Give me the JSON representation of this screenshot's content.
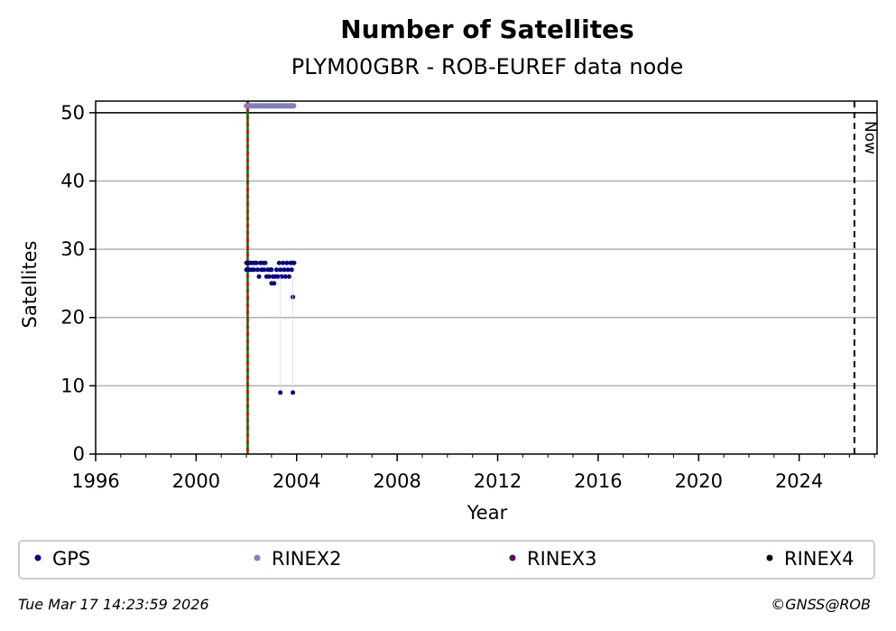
{
  "chart_data": {
    "type": "scatter",
    "title": "Number of Satellites",
    "subtitle": "PLYM00GBR - ROB-EUREF data node",
    "xlabel": "Year",
    "ylabel": "Satellites",
    "xlim": [
      1996,
      2027.1
    ],
    "ylim": [
      0,
      51.7
    ],
    "xticks": [
      1996,
      2000,
      2004,
      2008,
      2012,
      2016,
      2020,
      2024
    ],
    "yticks": [
      0,
      10,
      20,
      30,
      40,
      50
    ],
    "grid": "y",
    "reference_line_y": 50,
    "now_x": 2026.2,
    "now_label": "Now",
    "start_line_x": 2002.05,
    "legend_placement": "bottom",
    "series": [
      {
        "name": "GPS",
        "color": "#00008b",
        "points": [
          [
            2002.0,
            28
          ],
          [
            2002.0,
            27
          ],
          [
            2002.05,
            28
          ],
          [
            2002.1,
            27
          ],
          [
            2002.1,
            28
          ],
          [
            2002.15,
            28
          ],
          [
            2002.2,
            27
          ],
          [
            2002.25,
            28
          ],
          [
            2002.3,
            27
          ],
          [
            2002.35,
            28
          ],
          [
            2002.4,
            28
          ],
          [
            2002.45,
            27
          ],
          [
            2002.5,
            26
          ],
          [
            2002.55,
            28
          ],
          [
            2002.6,
            27
          ],
          [
            2002.65,
            28
          ],
          [
            2002.7,
            27
          ],
          [
            2002.75,
            28
          ],
          [
            2002.8,
            26
          ],
          [
            2002.85,
            27
          ],
          [
            2002.9,
            26
          ],
          [
            2002.95,
            27
          ],
          [
            2003.0,
            27
          ],
          [
            2003.0,
            25
          ],
          [
            2003.05,
            26
          ],
          [
            2003.1,
            25
          ],
          [
            2003.15,
            26
          ],
          [
            2003.2,
            27
          ],
          [
            2003.25,
            26
          ],
          [
            2003.3,
            28
          ],
          [
            2003.35,
            27
          ],
          [
            2003.4,
            26
          ],
          [
            2003.45,
            28
          ],
          [
            2003.5,
            27
          ],
          [
            2003.55,
            26
          ],
          [
            2003.6,
            28
          ],
          [
            2003.65,
            27
          ],
          [
            2003.7,
            26
          ],
          [
            2003.75,
            28
          ],
          [
            2003.8,
            27
          ],
          [
            2003.85,
            28
          ],
          [
            2003.9,
            28
          ],
          [
            2003.35,
            9
          ],
          [
            2003.85,
            23
          ],
          [
            2003.85,
            9
          ]
        ]
      },
      {
        "name": "RINEX2",
        "color": "#8080c0",
        "x_range": [
          2002.0,
          2003.9
        ],
        "y": 51
      },
      {
        "name": "RINEX3",
        "color": "#660066",
        "points": []
      },
      {
        "name": "RINEX4",
        "color": "#1a0010",
        "points": []
      }
    ]
  },
  "footer": {
    "timestamp": "Tue Mar 17 14:23:59 2026",
    "credit": "©GNSS@ROB"
  },
  "colors": {
    "grid": "#b0b0b0",
    "start_line_red": "#cc0000",
    "start_line_green": "#007700"
  }
}
